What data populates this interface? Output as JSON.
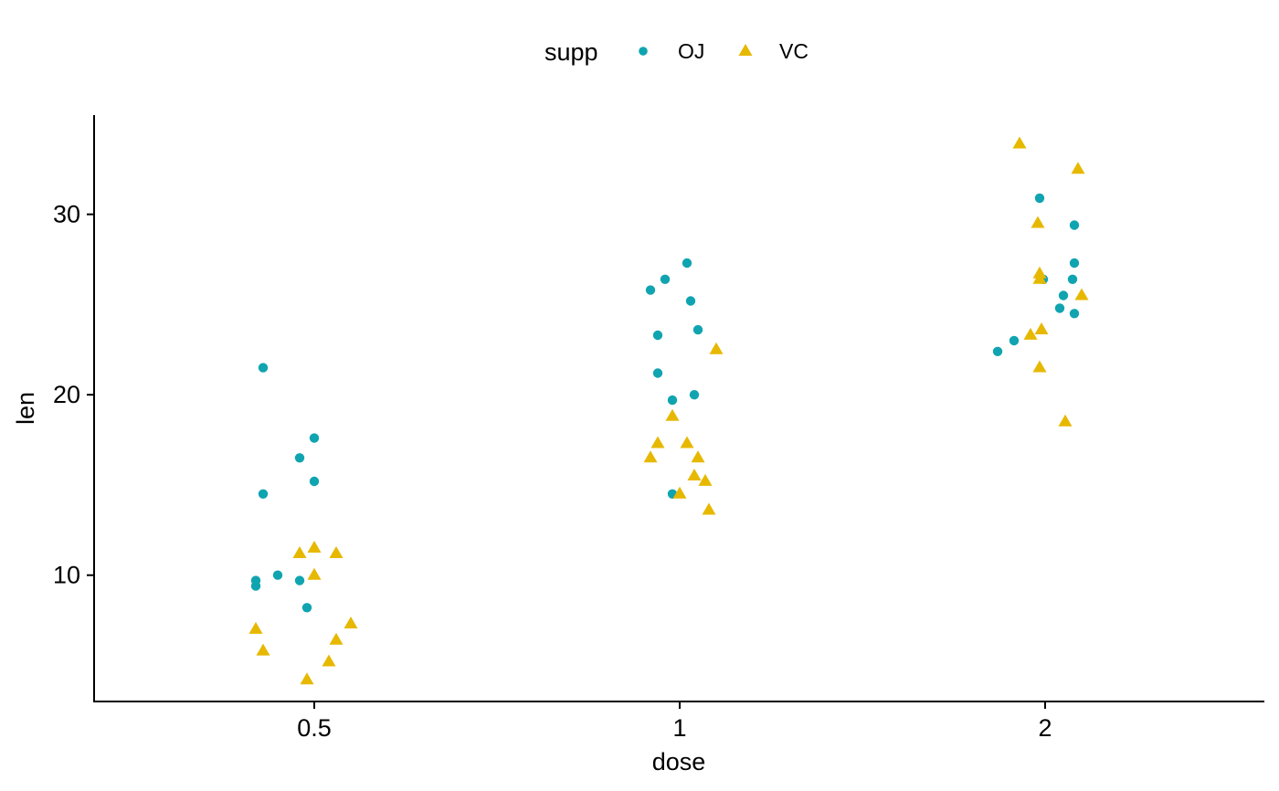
{
  "chart_data": {
    "type": "scatter",
    "xlabel": "dose",
    "ylabel": "len",
    "x_axis_type": "categorical-jittered",
    "categories": [
      "0.5",
      "1",
      "2"
    ],
    "ylim": [
      3.0,
      35.5
    ],
    "yticks": [
      10,
      20,
      30
    ],
    "grid": false,
    "legend": {
      "title": "supp",
      "position": "top"
    },
    "series": [
      {
        "name": "OJ",
        "color": "#10A4B0",
        "marker": "circle",
        "points": [
          {
            "x": 0.43,
            "y": 21.5
          },
          {
            "x": 0.43,
            "y": 14.5
          },
          {
            "x": 0.48,
            "y": 16.5
          },
          {
            "x": 0.5,
            "y": 17.6
          },
          {
            "x": 0.5,
            "y": 15.2
          },
          {
            "x": 0.42,
            "y": 9.7
          },
          {
            "x": 0.42,
            "y": 9.4
          },
          {
            "x": 0.45,
            "y": 10.0
          },
          {
            "x": 0.48,
            "y": 9.7
          },
          {
            "x": 0.49,
            "y": 8.2
          },
          {
            "x": 0.92,
            "y": 25.8
          },
          {
            "x": 0.96,
            "y": 26.4
          },
          {
            "x": 1.02,
            "y": 27.3
          },
          {
            "x": 1.03,
            "y": 25.2
          },
          {
            "x": 1.05,
            "y": 23.6
          },
          {
            "x": 0.94,
            "y": 23.3
          },
          {
            "x": 0.94,
            "y": 21.2
          },
          {
            "x": 0.98,
            "y": 19.7
          },
          {
            "x": 1.04,
            "y": 20.0
          },
          {
            "x": 0.98,
            "y": 14.5
          },
          {
            "x": 1.97,
            "y": 30.9
          },
          {
            "x": 2.16,
            "y": 29.4
          },
          {
            "x": 2.16,
            "y": 27.3
          },
          {
            "x": 1.99,
            "y": 26.4
          },
          {
            "x": 2.15,
            "y": 26.4
          },
          {
            "x": 2.1,
            "y": 25.5
          },
          {
            "x": 2.08,
            "y": 24.8
          },
          {
            "x": 2.16,
            "y": 24.5
          },
          {
            "x": 1.83,
            "y": 23.0
          },
          {
            "x": 1.74,
            "y": 22.4
          }
        ]
      },
      {
        "name": "VC",
        "color": "#E7B800",
        "marker": "triangle",
        "points": [
          {
            "x": 0.5,
            "y": 11.5
          },
          {
            "x": 0.48,
            "y": 11.2
          },
          {
            "x": 0.53,
            "y": 11.2
          },
          {
            "x": 0.5,
            "y": 10.0
          },
          {
            "x": 0.42,
            "y": 7.0
          },
          {
            "x": 0.55,
            "y": 7.3
          },
          {
            "x": 0.53,
            "y": 6.4
          },
          {
            "x": 0.43,
            "y": 5.8
          },
          {
            "x": 0.52,
            "y": 5.2
          },
          {
            "x": 0.49,
            "y": 4.2
          },
          {
            "x": 1.1,
            "y": 22.5
          },
          {
            "x": 0.98,
            "y": 18.8
          },
          {
            "x": 0.94,
            "y": 17.3
          },
          {
            "x": 1.02,
            "y": 17.3
          },
          {
            "x": 0.92,
            "y": 16.5
          },
          {
            "x": 1.05,
            "y": 16.5
          },
          {
            "x": 1.04,
            "y": 15.5
          },
          {
            "x": 1.07,
            "y": 15.2
          },
          {
            "x": 1.0,
            "y": 14.5
          },
          {
            "x": 1.08,
            "y": 13.6
          },
          {
            "x": 1.86,
            "y": 33.9
          },
          {
            "x": 2.18,
            "y": 32.5
          },
          {
            "x": 1.96,
            "y": 29.5
          },
          {
            "x": 1.97,
            "y": 26.7
          },
          {
            "x": 1.97,
            "y": 26.4
          },
          {
            "x": 2.2,
            "y": 25.5
          },
          {
            "x": 1.98,
            "y": 23.6
          },
          {
            "x": 1.92,
            "y": 23.3
          },
          {
            "x": 1.97,
            "y": 21.5
          },
          {
            "x": 2.11,
            "y": 18.5
          }
        ]
      }
    ]
  }
}
